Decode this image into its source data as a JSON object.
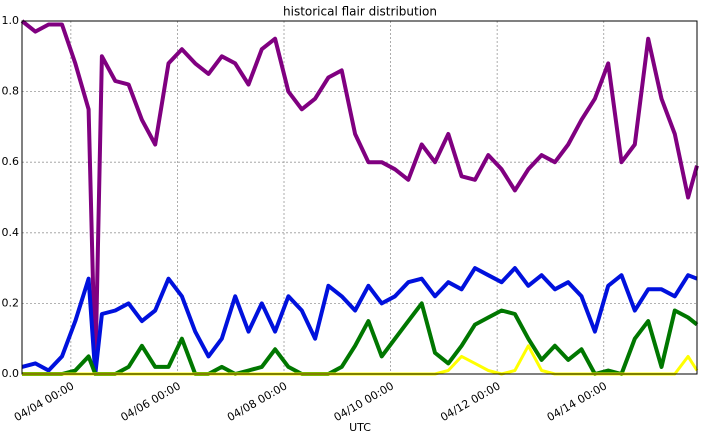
{
  "chart_data": {
    "type": "line",
    "title": "historical flair distribution",
    "xlabel": "UTC",
    "x": [
      "04/03 02:00",
      "04/03 08:00",
      "04/03 14:00",
      "04/03 20:00",
      "04/04 02:00",
      "04/04 08:00",
      "04/04 11:00",
      "04/04 14:00",
      "04/04 20:00",
      "04/05 02:00",
      "04/05 08:00",
      "04/05 14:00",
      "04/05 20:00",
      "04/06 02:00",
      "04/06 08:00",
      "04/06 14:00",
      "04/06 20:00",
      "04/07 02:00",
      "04/07 08:00",
      "04/07 14:00",
      "04/07 20:00",
      "04/08 02:00",
      "04/08 08:00",
      "04/08 14:00",
      "04/08 20:00",
      "04/09 02:00",
      "04/09 08:00",
      "04/09 14:00",
      "04/09 20:00",
      "04/10 02:00",
      "04/10 08:00",
      "04/10 14:00",
      "04/10 20:00",
      "04/11 02:00",
      "04/11 08:00",
      "04/11 14:00",
      "04/11 20:00",
      "04/12 02:00",
      "04/12 08:00",
      "04/12 14:00",
      "04/12 20:00",
      "04/13 02:00",
      "04/13 08:00",
      "04/13 14:00",
      "04/13 20:00",
      "04/14 02:00",
      "04/14 08:00",
      "04/14 14:00",
      "04/14 20:00",
      "04/15 02:00",
      "04/15 08:00",
      "04/15 14:00",
      "04/15 18:00"
    ],
    "xlim": [
      "04/03 02:00",
      "04/15 18:00"
    ],
    "xticks": [
      "04/04 00:00",
      "04/06 00:00",
      "04/08 00:00",
      "04/10 00:00",
      "04/12 00:00",
      "04/14 00:00"
    ],
    "ylim": [
      0,
      1
    ],
    "yticks": [
      {
        "value": 0,
        "label": "0.0"
      },
      0.2,
      0.4,
      0.6,
      0.8,
      {
        "value": 1,
        "label": "1.0"
      }
    ],
    "grid": true,
    "series": [
      {
        "color": "#800080",
        "values": [
          1.0,
          0.97,
          0.99,
          0.99,
          0.88,
          0.75,
          0.0,
          0.9,
          0.83,
          0.82,
          0.72,
          0.65,
          0.88,
          0.92,
          0.88,
          0.85,
          0.9,
          0.88,
          0.82,
          0.92,
          0.95,
          0.8,
          0.75,
          0.78,
          0.84,
          0.86,
          0.68,
          0.6,
          0.6,
          0.58,
          0.55,
          0.65,
          0.6,
          0.68,
          0.56,
          0.55,
          0.62,
          0.58,
          0.52,
          0.58,
          0.62,
          0.6,
          0.65,
          0.72,
          0.78,
          0.88,
          0.6,
          0.65,
          0.95,
          0.78,
          0.68,
          0.5,
          0.59
        ]
      },
      {
        "color": "#0011dd",
        "values": [
          0.02,
          0.03,
          0.01,
          0.05,
          0.15,
          0.27,
          0.0,
          0.17,
          0.18,
          0.2,
          0.15,
          0.18,
          0.27,
          0.22,
          0.12,
          0.05,
          0.1,
          0.22,
          0.12,
          0.2,
          0.12,
          0.22,
          0.18,
          0.1,
          0.25,
          0.22,
          0.18,
          0.25,
          0.2,
          0.22,
          0.26,
          0.27,
          0.22,
          0.26,
          0.24,
          0.3,
          0.28,
          0.26,
          0.3,
          0.25,
          0.28,
          0.24,
          0.26,
          0.22,
          0.12,
          0.25,
          0.28,
          0.18,
          0.24,
          0.24,
          0.22,
          0.28,
          0.27
        ]
      },
      {
        "color": "#007700",
        "values": [
          0,
          0,
          0,
          0,
          0.01,
          0.05,
          0,
          0,
          0,
          0.02,
          0.08,
          0.02,
          0.02,
          0.1,
          0,
          0,
          0.02,
          0,
          0.01,
          0.02,
          0.07,
          0.02,
          0,
          0,
          0,
          0.02,
          0.08,
          0.15,
          0.05,
          0.1,
          0.15,
          0.2,
          0.06,
          0.03,
          0.08,
          0.14,
          0.16,
          0.18,
          0.17,
          0.1,
          0.04,
          0.08,
          0.04,
          0.07,
          0,
          0.01,
          0,
          0.1,
          0.15,
          0.02,
          0.18,
          0.16,
          0.14
        ]
      },
      {
        "color": "#ffff00",
        "values": [
          0,
          0,
          0,
          0,
          0,
          0,
          0,
          0,
          0,
          0,
          0,
          0,
          0,
          0,
          0,
          0,
          0,
          0,
          0,
          0,
          0,
          0,
          0,
          0,
          0,
          0,
          0,
          0,
          0,
          0,
          0,
          0,
          0,
          0.01,
          0.05,
          0.03,
          0.01,
          0,
          0.01,
          0.08,
          0.01,
          0,
          0,
          0,
          0,
          0,
          0,
          0,
          0,
          0,
          0,
          0.05,
          0.01
        ]
      }
    ]
  }
}
